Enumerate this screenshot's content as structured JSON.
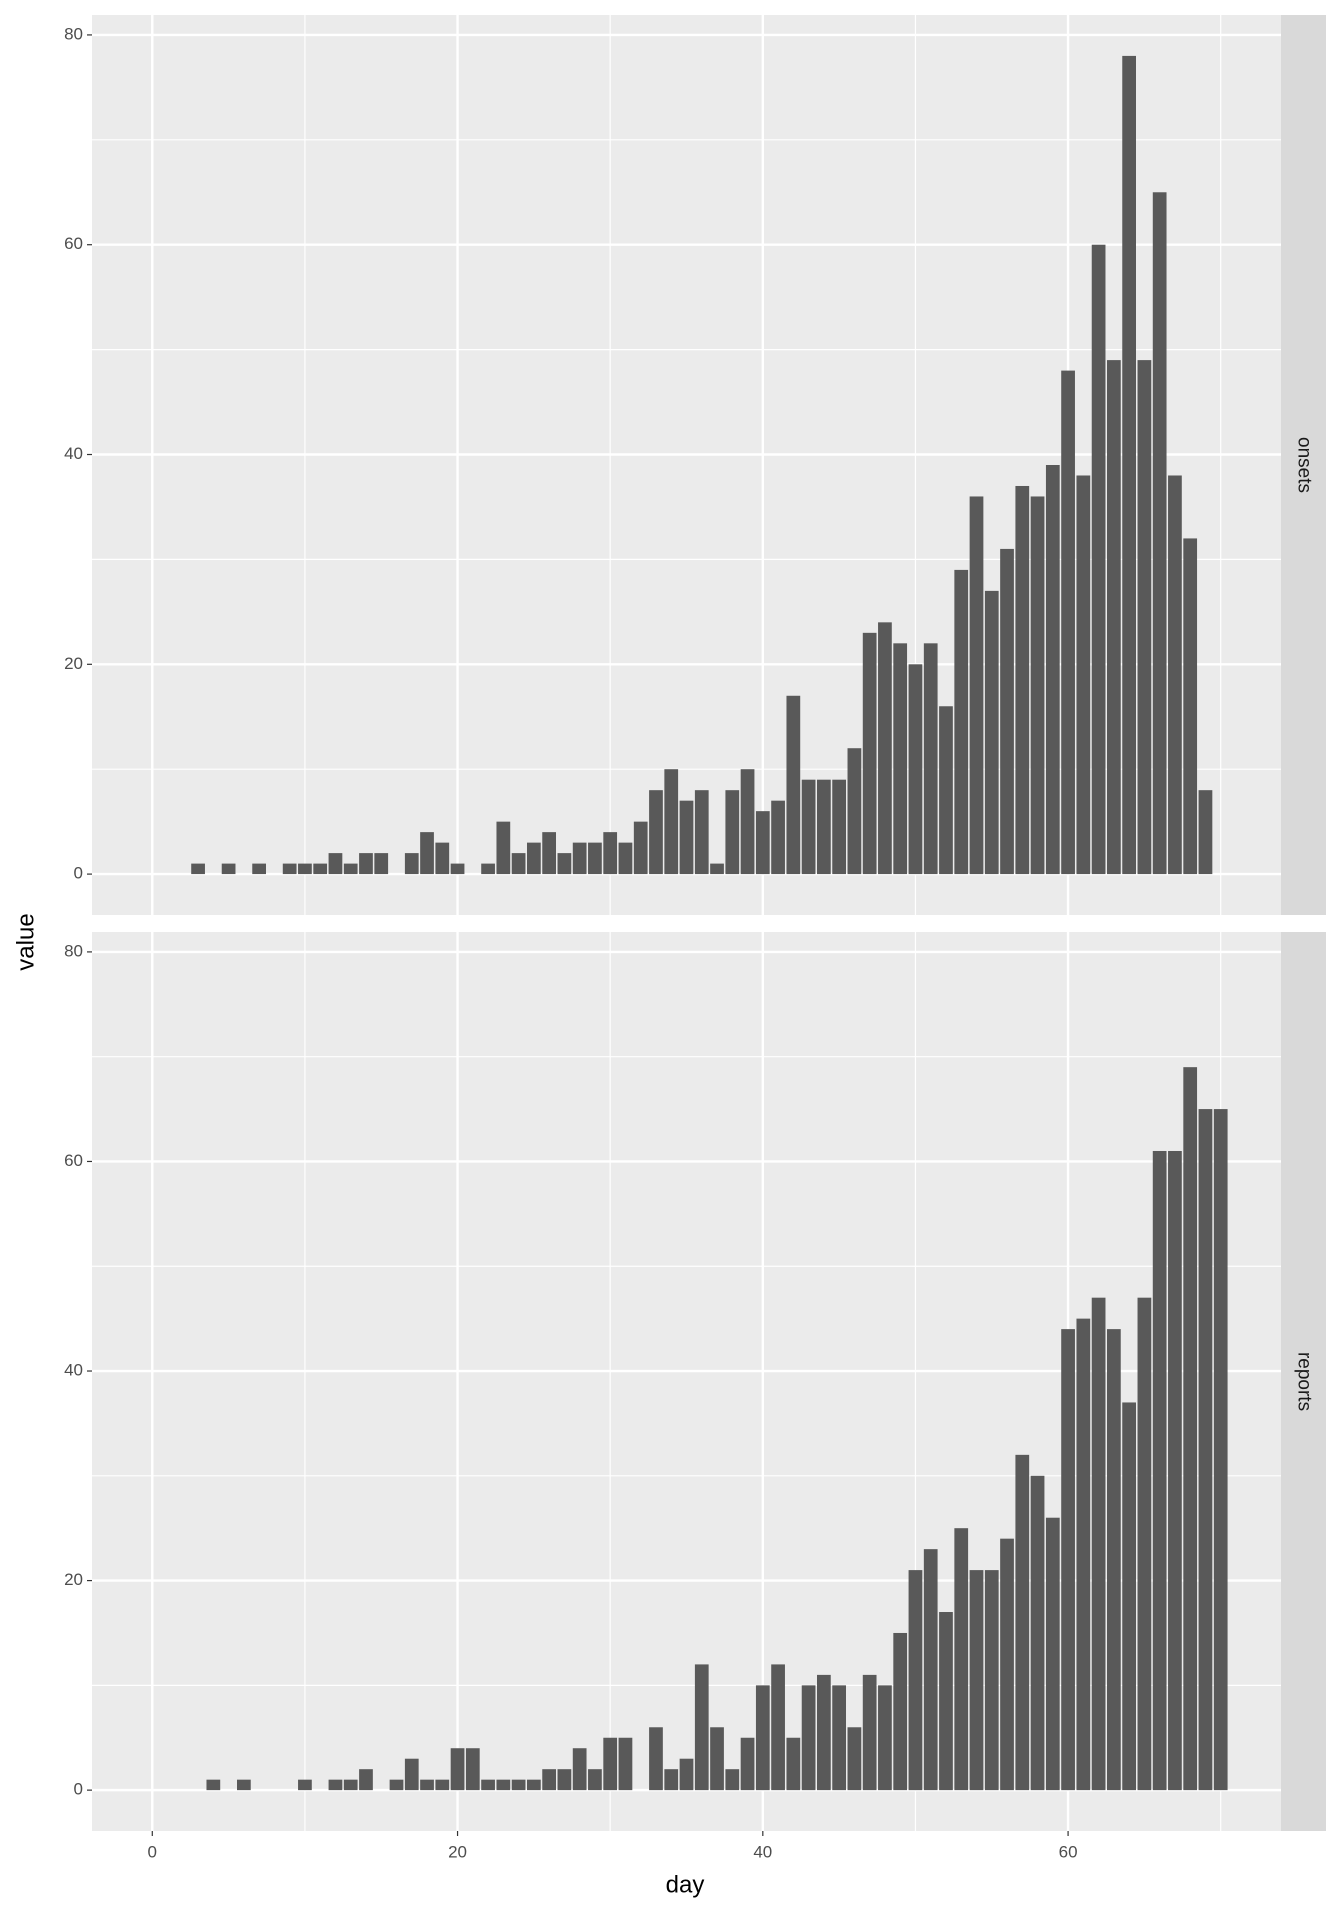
{
  "chart_data": {
    "type": "bar",
    "xlabel": "day",
    "ylabel": "value",
    "xlim": [
      -3.95,
      73.95
    ],
    "xticks": [
      0,
      20,
      40,
      60
    ],
    "ylim": [
      -3.9,
      81.9
    ],
    "yticks": [
      0,
      20,
      40,
      60,
      80
    ],
    "grid": true,
    "color": "#595959",
    "facets": [
      {
        "label": "onsets",
        "x": [
          3,
          5,
          7,
          9,
          10,
          11,
          12,
          13,
          14,
          15,
          17,
          18,
          19,
          20,
          22,
          23,
          24,
          25,
          26,
          27,
          28,
          29,
          30,
          31,
          32,
          33,
          34,
          35,
          36,
          37,
          38,
          39,
          40,
          41,
          42,
          43,
          44,
          45,
          46,
          47,
          48,
          49,
          50,
          51,
          52,
          53,
          54,
          55,
          56,
          57,
          58,
          59,
          60,
          61,
          62,
          63,
          64,
          65,
          66,
          67,
          68,
          69
        ],
        "values": [
          1,
          1,
          1,
          1,
          1,
          1,
          2,
          1,
          2,
          2,
          2,
          4,
          3,
          1,
          1,
          5,
          2,
          3,
          4,
          2,
          3,
          3,
          4,
          3,
          5,
          8,
          10,
          7,
          8,
          1,
          8,
          10,
          6,
          7,
          17,
          9,
          9,
          9,
          12,
          23,
          24,
          22,
          20,
          22,
          16,
          29,
          36,
          27,
          31,
          37,
          36,
          39,
          48,
          38,
          60,
          49,
          78,
          49,
          65,
          38,
          32,
          8
        ]
      },
      {
        "label": "reports",
        "x": [
          4,
          6,
          10,
          12,
          13,
          14,
          16,
          17,
          18,
          19,
          20,
          21,
          22,
          23,
          24,
          25,
          26,
          27,
          28,
          29,
          30,
          31,
          33,
          34,
          35,
          36,
          37,
          38,
          39,
          40,
          41,
          42,
          43,
          44,
          45,
          46,
          47,
          48,
          49,
          50,
          51,
          52,
          53,
          54,
          55,
          56,
          57,
          58,
          59,
          60,
          61,
          62,
          63,
          64,
          65,
          66,
          67,
          68,
          69,
          70
        ],
        "values": [
          1,
          1,
          1,
          1,
          1,
          2,
          1,
          3,
          1,
          1,
          4,
          4,
          1,
          1,
          1,
          1,
          2,
          2,
          4,
          2,
          5,
          5,
          6,
          2,
          3,
          12,
          6,
          2,
          5,
          10,
          12,
          5,
          10,
          11,
          10,
          6,
          11,
          10,
          15,
          21,
          23,
          17,
          25,
          21,
          21,
          24,
          32,
          30,
          26,
          44,
          45,
          47,
          44,
          37,
          47,
          61,
          61,
          69,
          65,
          65
        ]
      }
    ]
  }
}
